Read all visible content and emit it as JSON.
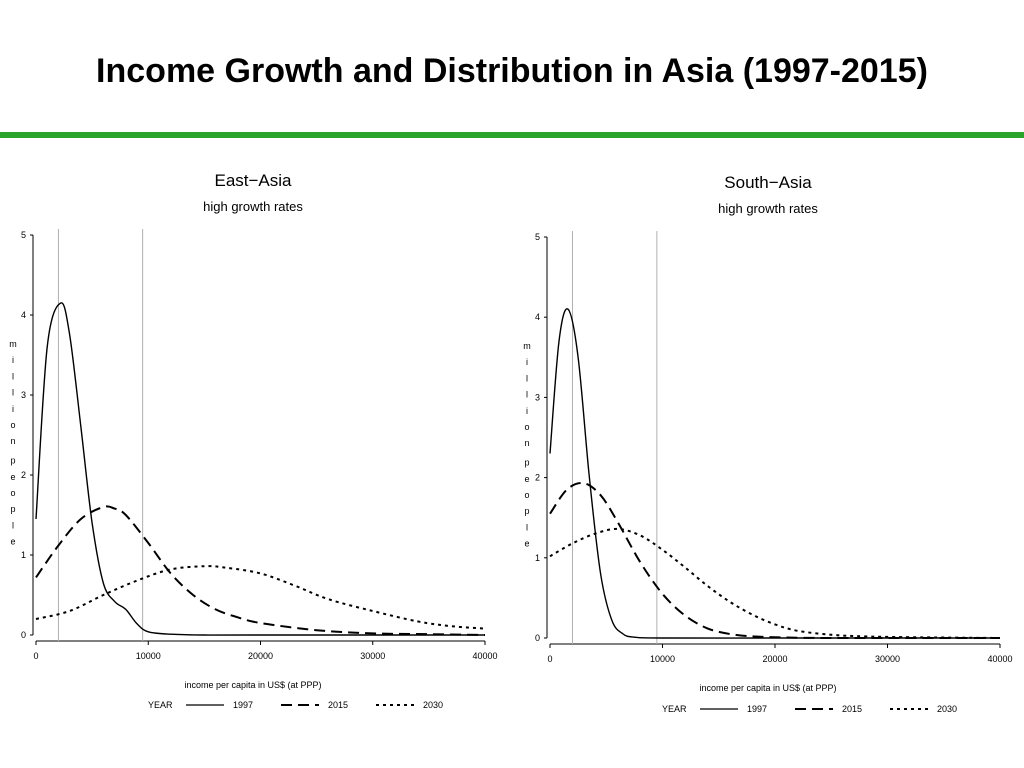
{
  "slide": {
    "title": "Income Growth and Distribution in Asia (1997-2015)",
    "accent_color": "#2aa52a"
  },
  "chart_data": [
    {
      "type": "line",
      "title": "East−Asia",
      "subtitle": "high growth rates",
      "xlabel": "income per capita in US$ (at PPP)",
      "ylabel": "m i l l i o n  p e o p l e",
      "xlim": [
        0,
        40000
      ],
      "ylim": [
        0,
        5
      ],
      "xticks": [
        "0",
        "10000",
        "20000",
        "30000",
        "40000"
      ],
      "yticks": [
        "0",
        "1",
        "2",
        "3",
        "4",
        "5"
      ],
      "reference_lines_x": [
        2000,
        9500
      ],
      "legend_title": "YEAR",
      "legend_position": "bottom",
      "series": [
        {
          "name": "1997",
          "style": "solid",
          "x": [
            0,
            1000,
            2200,
            3000,
            4000,
            5000,
            6000,
            7000,
            8000,
            9000,
            10000,
            12000,
            15000,
            20000,
            30000,
            40000
          ],
          "y": [
            1.45,
            3.6,
            4.15,
            3.75,
            2.6,
            1.4,
            0.65,
            0.42,
            0.32,
            0.14,
            0.04,
            0.01,
            0.0,
            0.0,
            0.0,
            0.0
          ]
        },
        {
          "name": "2015",
          "style": "dashed",
          "x": [
            0,
            2000,
            4000,
            6000,
            7000,
            8000,
            10000,
            12000,
            14000,
            16000,
            18000,
            20000,
            25000,
            30000,
            35000,
            40000
          ],
          "y": [
            0.72,
            1.12,
            1.45,
            1.6,
            1.58,
            1.5,
            1.15,
            0.77,
            0.5,
            0.32,
            0.22,
            0.15,
            0.06,
            0.02,
            0.01,
            0.0
          ]
        },
        {
          "name": "2030",
          "style": "dotted",
          "x": [
            0,
            3000,
            6000,
            9000,
            12000,
            15000,
            17000,
            20000,
            23000,
            26000,
            30000,
            34000,
            37000,
            40000
          ],
          "y": [
            0.2,
            0.3,
            0.5,
            0.68,
            0.82,
            0.86,
            0.84,
            0.77,
            0.62,
            0.45,
            0.3,
            0.17,
            0.11,
            0.08
          ]
        }
      ]
    },
    {
      "type": "line",
      "title": "South−Asia",
      "subtitle": "high growth rates",
      "xlabel": "income per capita in US$ (at PPP)",
      "ylabel": "m i l l i o n  p e o p l e",
      "xlim": [
        0,
        40000
      ],
      "ylim": [
        0,
        5
      ],
      "xticks": [
        "0",
        "10000",
        "20000",
        "30000",
        "40000"
      ],
      "yticks": [
        "0",
        "1",
        "2",
        "3",
        "4",
        "5"
      ],
      "reference_lines_x": [
        2000,
        9500
      ],
      "legend_title": "YEAR",
      "legend_position": "bottom",
      "series": [
        {
          "name": "1997",
          "style": "solid",
          "x": [
            0,
            800,
            1600,
            2500,
            3500,
            4500,
            5500,
            6500,
            7500,
            10000,
            20000,
            30000,
            40000
          ],
          "y": [
            2.3,
            3.7,
            4.1,
            3.5,
            2.0,
            0.8,
            0.22,
            0.05,
            0.01,
            0.0,
            0.0,
            0.0,
            0.0
          ]
        },
        {
          "name": "2015",
          "style": "dashed",
          "x": [
            0,
            1500,
            3000,
            4500,
            6000,
            8000,
            10000,
            12000,
            14000,
            16000,
            18000,
            20000,
            25000,
            40000
          ],
          "y": [
            1.55,
            1.85,
            1.93,
            1.78,
            1.45,
            0.95,
            0.55,
            0.28,
            0.12,
            0.05,
            0.02,
            0.01,
            0.0,
            0.0
          ]
        },
        {
          "name": "2030",
          "style": "dotted",
          "x": [
            0,
            2000,
            4000,
            6000,
            8000,
            10000,
            12000,
            14000,
            16000,
            18000,
            20000,
            22000,
            25000,
            28000,
            32000,
            40000
          ],
          "y": [
            1.02,
            1.18,
            1.3,
            1.36,
            1.28,
            1.1,
            0.88,
            0.65,
            0.45,
            0.29,
            0.17,
            0.09,
            0.04,
            0.02,
            0.01,
            0.0
          ]
        }
      ]
    }
  ]
}
